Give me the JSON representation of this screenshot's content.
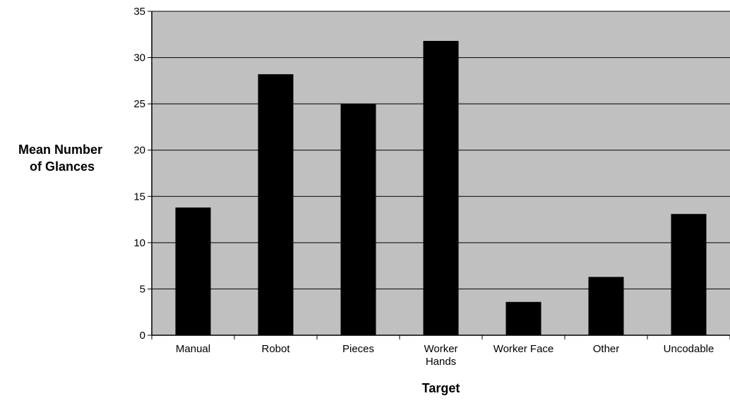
{
  "chart_data": {
    "type": "bar",
    "title": "",
    "xlabel": "Target",
    "ylabel_lines": [
      "Mean Number",
      "of Glances"
    ],
    "categories": [
      [
        "Manual"
      ],
      [
        "Robot"
      ],
      [
        "Pieces"
      ],
      [
        "Worker",
        "Hands"
      ],
      [
        "Worker Face"
      ],
      [
        "Other"
      ],
      [
        "Uncodable"
      ]
    ],
    "values": [
      13.8,
      28.2,
      25.0,
      31.8,
      3.6,
      6.3,
      13.1
    ],
    "ylim": [
      0,
      35
    ],
    "yticks": [
      0,
      5,
      10,
      15,
      20,
      25,
      30,
      35
    ],
    "grid": true,
    "legend": "none",
    "colors": {
      "plot_background": "#c0c0c0",
      "bar_fill": "#000000",
      "gridline": "#000000",
      "axis": "#000000"
    }
  }
}
